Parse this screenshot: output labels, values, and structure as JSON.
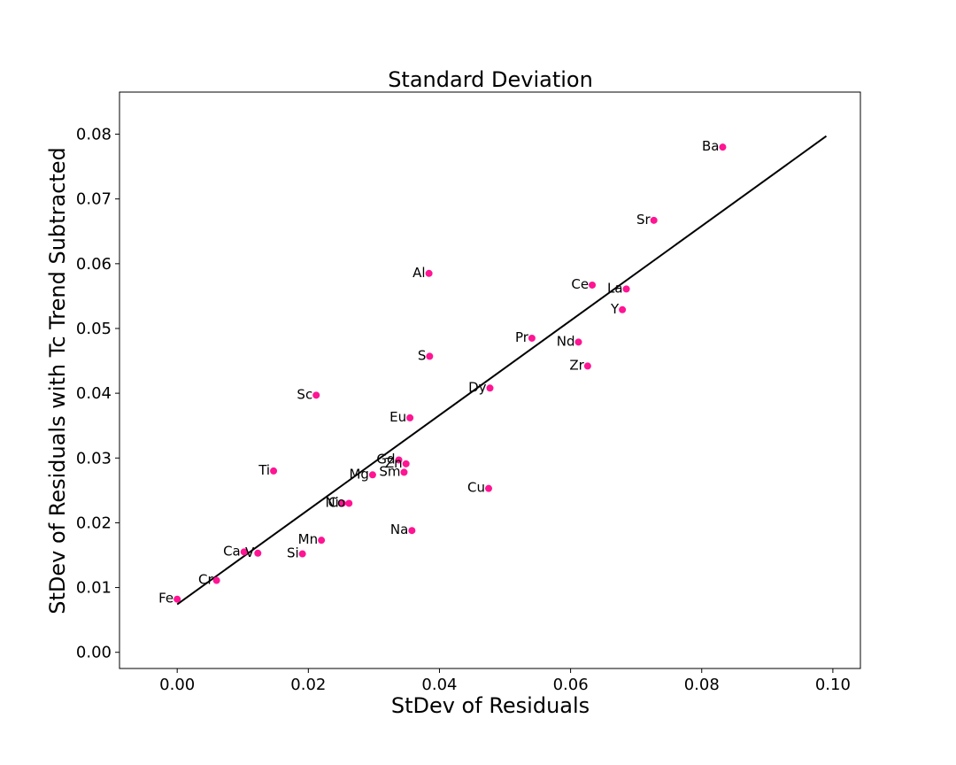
{
  "chart_data": {
    "type": "scatter",
    "title": "Standard Deviation",
    "xlabel": "StDev of Residuals",
    "ylabel": "StDev of Residuals with Tc Trend Subtracted",
    "xlim": [
      -0.0088,
      0.1042
    ],
    "ylim": [
      -0.0025,
      0.0865
    ],
    "xticks": [
      "0.00",
      "0.02",
      "0.04",
      "0.06",
      "0.08",
      "0.10"
    ],
    "yticks": [
      "0.00",
      "0.01",
      "0.02",
      "0.03",
      "0.04",
      "0.05",
      "0.06",
      "0.07",
      "0.08"
    ],
    "grid": false,
    "point_color": "#ff1493",
    "line_color": "#000000",
    "fit_line": {
      "x": [
        0.0,
        0.099
      ],
      "y": [
        0.0074,
        0.0797
      ]
    },
    "points": [
      {
        "label": "Ba",
        "x": 0.0832,
        "y": 0.078
      },
      {
        "label": "Sr",
        "x": 0.0727,
        "y": 0.0667
      },
      {
        "label": "Al",
        "x": 0.0384,
        "y": 0.0585
      },
      {
        "label": "Ce",
        "x": 0.0633,
        "y": 0.0567
      },
      {
        "label": "La",
        "x": 0.0685,
        "y": 0.0561
      },
      {
        "label": "Y",
        "x": 0.0679,
        "y": 0.0529
      },
      {
        "label": "Pr",
        "x": 0.0541,
        "y": 0.0485
      },
      {
        "label": "Nd",
        "x": 0.0612,
        "y": 0.0479
      },
      {
        "label": "S",
        "x": 0.0385,
        "y": 0.0457
      },
      {
        "label": "Zr",
        "x": 0.0626,
        "y": 0.0442
      },
      {
        "label": "Dy",
        "x": 0.0477,
        "y": 0.0408
      },
      {
        "label": "Sc",
        "x": 0.0212,
        "y": 0.0397
      },
      {
        "label": "Eu",
        "x": 0.0355,
        "y": 0.0362
      },
      {
        "label": "Gd",
        "x": 0.0338,
        "y": 0.0297
      },
      {
        "label": "Zn",
        "x": 0.0349,
        "y": 0.0291
      },
      {
        "label": "Sm",
        "x": 0.0346,
        "y": 0.0278
      },
      {
        "label": "Mg",
        "x": 0.0298,
        "y": 0.0274
      },
      {
        "label": "Ti",
        "x": 0.0147,
        "y": 0.028
      },
      {
        "label": "Cu",
        "x": 0.0475,
        "y": 0.0253
      },
      {
        "label": "Ni",
        "x": 0.0252,
        "y": 0.023
      },
      {
        "label": "Co",
        "x": 0.0262,
        "y": 0.023
      },
      {
        "label": "Na",
        "x": 0.0358,
        "y": 0.0188
      },
      {
        "label": "Mn",
        "x": 0.022,
        "y": 0.0173
      },
      {
        "label": "Ca",
        "x": 0.0102,
        "y": 0.0155
      },
      {
        "label": "V",
        "x": 0.0123,
        "y": 0.0153
      },
      {
        "label": "Si",
        "x": 0.0191,
        "y": 0.0152
      },
      {
        "label": "Cr",
        "x": 0.006,
        "y": 0.0111
      },
      {
        "label": "Fe",
        "x": 0.0,
        "y": 0.0082
      }
    ]
  }
}
